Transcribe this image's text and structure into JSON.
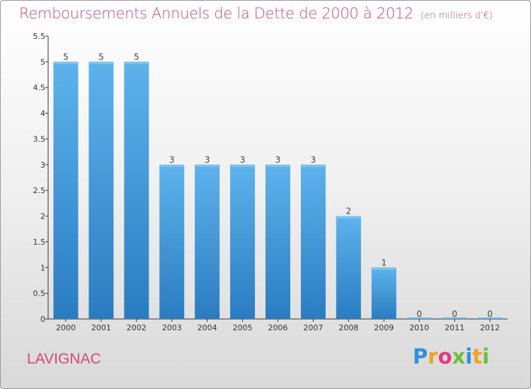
{
  "header": {
    "title": "Remboursements Annuels de la Dette de 2000 à 2012",
    "subtitle": "(en milliers d'€)"
  },
  "commune": "LAVIGNAC",
  "logo": {
    "text": "Proxiti",
    "letter_colors": [
      "#2f8fd8",
      "#f2a21b",
      "#e23b7a",
      "#6cbf3a",
      "#2f8fd8",
      "#f2a21b",
      "#6cbf3a"
    ]
  },
  "colors": {
    "title": "#d14a78",
    "bar_top": "#5db3ec",
    "bar_bottom": "#2a7cc1",
    "axis": "#333333",
    "grid": "#cccccc"
  },
  "chart_data": {
    "type": "bar",
    "title": "Remboursements Annuels de la Dette de 2000 à 2012",
    "subtitle": "(en milliers d'€)",
    "categories": [
      "2000",
      "2001",
      "2002",
      "2003",
      "2004",
      "2005",
      "2006",
      "2007",
      "2008",
      "2009",
      "2010",
      "2011",
      "2012"
    ],
    "values": [
      5,
      5,
      5,
      3,
      3,
      3,
      3,
      3,
      2,
      1,
      0,
      0,
      0
    ],
    "data_labels": [
      "5",
      "5",
      "5",
      "3",
      "3",
      "3",
      "3",
      "3",
      "2",
      "1",
      "0",
      "0",
      "0"
    ],
    "ylim": [
      0,
      5.5
    ],
    "yticks": [
      0,
      0.5,
      1,
      1.5,
      2,
      2.5,
      3,
      3.5,
      4,
      4.5,
      5,
      5.5
    ],
    "ytick_labels": [
      "0",
      "0.5",
      "1",
      "1.5",
      "2",
      "2.5",
      "3",
      "3.5",
      "4",
      "4.5",
      "5",
      "5.5"
    ],
    "xlabel": "",
    "ylabel": "",
    "grid": false,
    "legend": "none"
  }
}
